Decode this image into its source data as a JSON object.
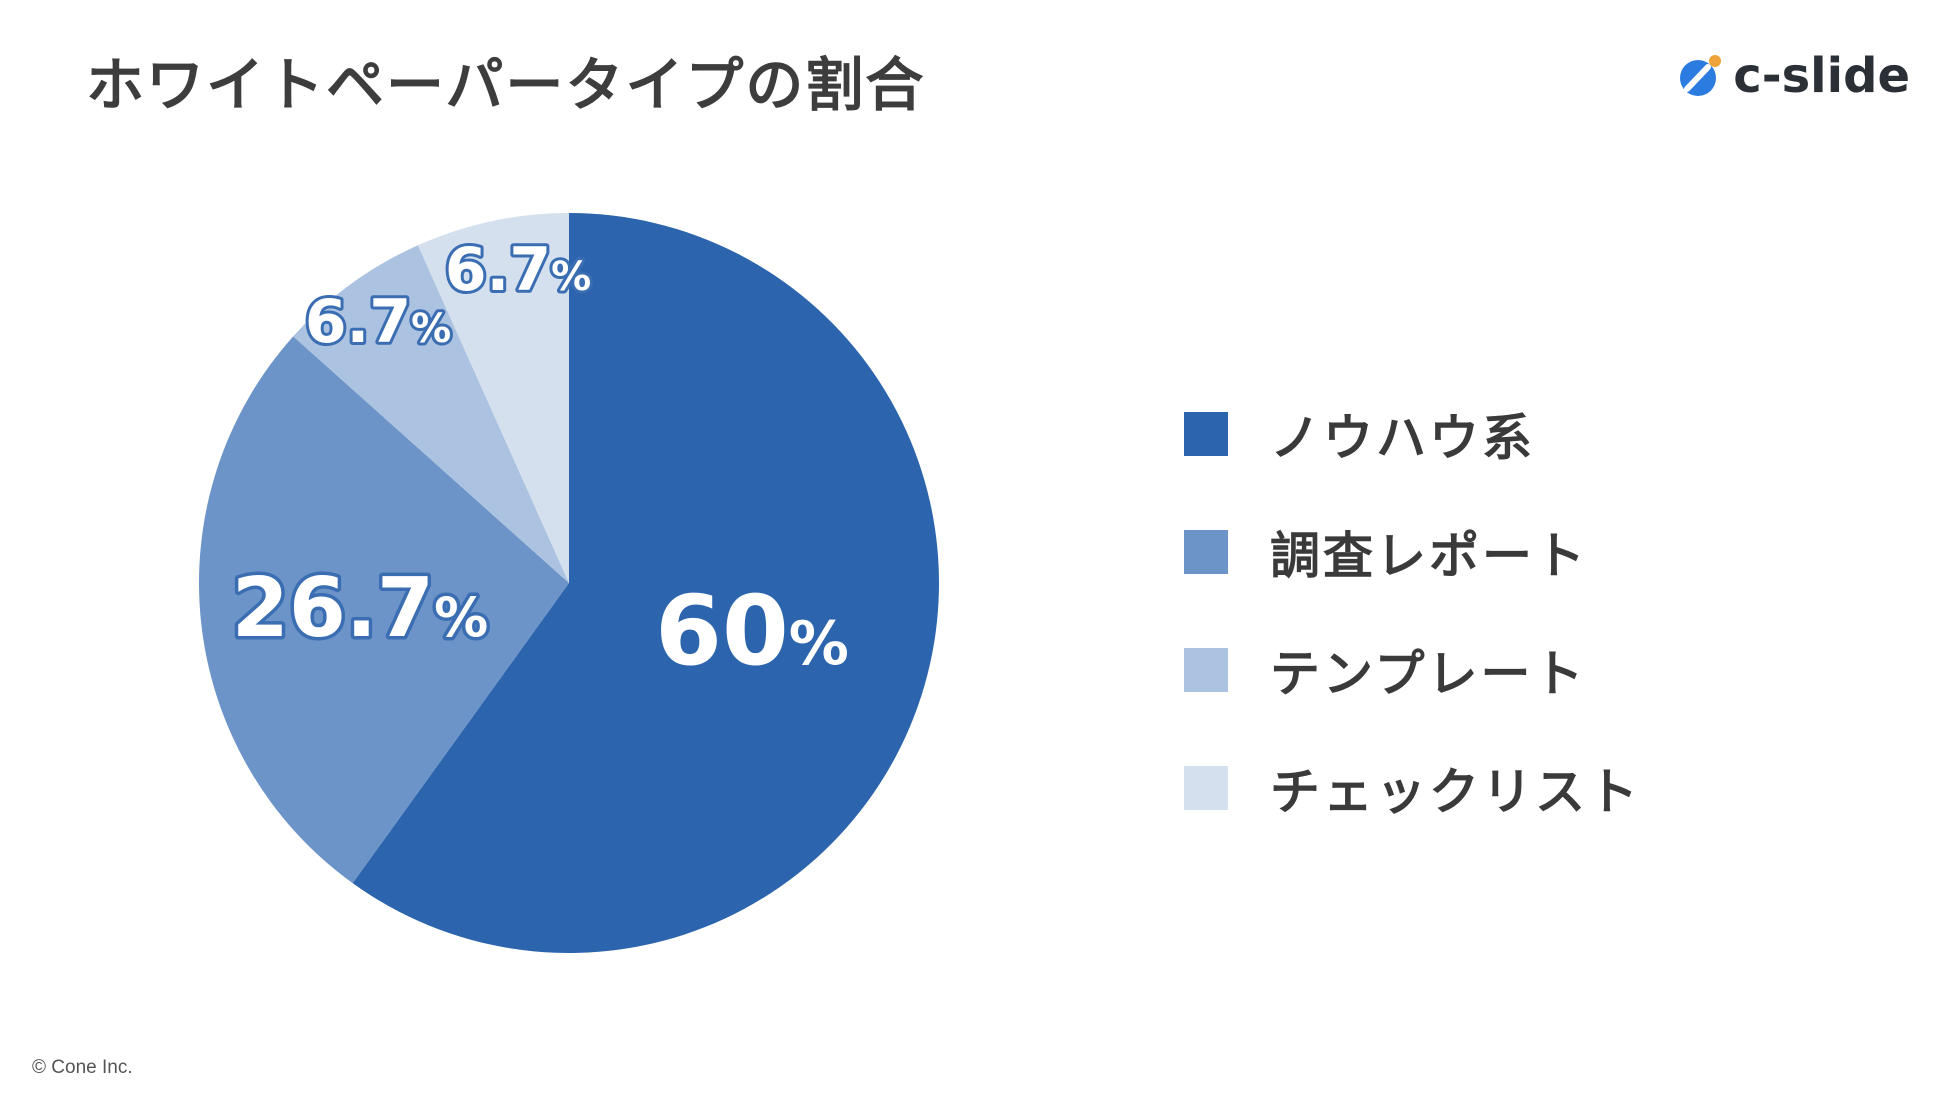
{
  "title": "ホワイトペーパータイプの割合",
  "brand": {
    "name": "c-slide",
    "icon": "c-slide-logo-icon"
  },
  "copyright": "© Cone Inc.",
  "colors": {
    "slice_1": "#2c65ad",
    "slice_2": "#6c94c8",
    "slice_3": "#abc2e0",
    "slice_4": "#d5e0ef",
    "label_outline": "#3a6db2"
  },
  "chart_data": {
    "type": "pie",
    "title": "ホワイトペーパータイプの割合",
    "legend_position": "right",
    "slices": [
      {
        "name": "ノウハウ系",
        "value": 60,
        "label": "60",
        "unit": "%",
        "color": "#2c65ad"
      },
      {
        "name": "調査レポート",
        "value": 26.7,
        "label": "26.7",
        "unit": "%",
        "color": "#6c94c8"
      },
      {
        "name": "テンプレート",
        "value": 6.7,
        "label": "6.7",
        "unit": "%",
        "color": "#abc2e0"
      },
      {
        "name": "チェックリスト",
        "value": 6.7,
        "label": "6.7",
        "unit": "%",
        "color": "#d5e0ef"
      }
    ]
  }
}
